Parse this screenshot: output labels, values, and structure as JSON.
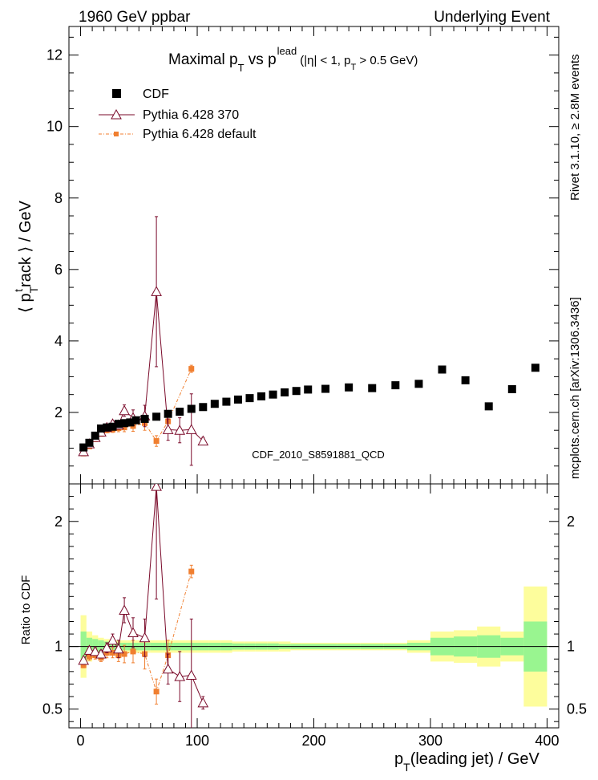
{
  "header": {
    "left": "1960 GeV ppbar",
    "right": "Underlying Event"
  },
  "side": {
    "rivet": "Rivet 3.1.10, ≥ 2.8M events",
    "mcplots": "mcplots.cern.ch [arXiv:1306.3436]"
  },
  "chart_data": [
    {
      "type": "scatter",
      "title": "Maximal p_T vs p_T^lead (|η| < 1, p_T > 0.5 GeV)",
      "title_parts": {
        "main": "Maximal p",
        "sub_T": "T",
        "vs": " vs p",
        "sup_lead": "lead",
        "paren": "(|η| < 1, p",
        "paren2": " > 0.5 GeV)"
      },
      "ylabel": "⟨ p_T^t rack ⟩ / GeV",
      "xlabel": "p_T(leading jet) / GeV",
      "xlim": [
        -10,
        410
      ],
      "ylim": [
        0,
        12.8
      ],
      "yticks": [
        2,
        4,
        6,
        8,
        10,
        12
      ],
      "ytick_labels": [
        "2",
        "4",
        "6",
        "8",
        "10",
        "12"
      ],
      "watermark": "CDF_2010_S8591881_QCD",
      "legend_position": "top-left",
      "legend": [
        {
          "label": "CDF",
          "color": "#000000",
          "marker": "square"
        },
        {
          "label": "Pythia 6.428 370",
          "color": "#7a0a2a",
          "marker": "open-triangle"
        },
        {
          "label": "Pythia 6.428 default",
          "color": "#f07f30",
          "marker": "small-square"
        }
      ],
      "series": [
        {
          "name": "CDF",
          "color": "#000000",
          "x": [
            2.5,
            7.5,
            12.5,
            17.5,
            22.5,
            27.5,
            32.5,
            37.5,
            42.5,
            47.5,
            55,
            65,
            75,
            85,
            95,
            105,
            115,
            125,
            135,
            145,
            155,
            165,
            175,
            185,
            195,
            210,
            230,
            250,
            270,
            290,
            310,
            330,
            350,
            370,
            390
          ],
          "y": [
            1.02,
            1.15,
            1.35,
            1.55,
            1.58,
            1.6,
            1.68,
            1.7,
            1.72,
            1.78,
            1.82,
            1.88,
            1.96,
            2.02,
            2.1,
            2.15,
            2.24,
            2.3,
            2.36,
            2.4,
            2.45,
            2.5,
            2.56,
            2.6,
            2.64,
            2.66,
            2.7,
            2.68,
            2.76,
            2.8,
            3.2,
            2.9,
            2.17,
            2.65,
            3.25
          ]
        },
        {
          "name": "Pythia 6.428 370",
          "color": "#7a0a2a",
          "x": [
            2.5,
            7.5,
            12.5,
            17.5,
            22.5,
            27.5,
            32.5,
            37.5,
            45,
            55,
            65,
            75,
            85,
            95,
            105
          ],
          "y": [
            0.9,
            1.12,
            1.3,
            1.45,
            1.58,
            1.68,
            1.65,
            2.05,
            1.85,
            1.9,
            5.38,
            1.52,
            1.5,
            1.52,
            1.2
          ],
          "yerr": [
            0.03,
            0.03,
            0.04,
            0.05,
            0.06,
            0.08,
            0.12,
            0.16,
            0.22,
            0.3,
            2.1,
            0.3,
            0.35,
            1.0,
            0.1
          ]
        },
        {
          "name": "Pythia 6.428 default",
          "color": "#f07f30",
          "x": [
            2.5,
            7.5,
            12.5,
            17.5,
            22.5,
            27.5,
            32.5,
            37.5,
            45,
            55,
            65,
            75,
            95
          ],
          "y": [
            0.85,
            1.05,
            1.25,
            1.4,
            1.5,
            1.52,
            1.56,
            1.58,
            1.62,
            1.7,
            1.2,
            1.75,
            3.22
          ],
          "yerr": [
            0.03,
            0.04,
            0.05,
            0.06,
            0.07,
            0.08,
            0.1,
            0.12,
            0.15,
            0.2,
            0.15,
            0.2,
            0.1
          ]
        }
      ]
    },
    {
      "type": "scatter",
      "ylabel": "Ratio to CDF",
      "xlabel": "p_T(leading jet) / GeV",
      "xlim": [
        -10,
        410
      ],
      "ylim": [
        0.35,
        2.3
      ],
      "yticks": [
        0.5,
        1,
        2
      ],
      "ytick_labels": [
        "0.5",
        "1",
        "2"
      ],
      "xticks": [
        0,
        100,
        200,
        300,
        400
      ],
      "xtick_labels": [
        "0",
        "100",
        "200",
        "300",
        "400"
      ],
      "bands": {
        "edges": [
          0,
          5,
          10,
          15,
          20,
          25,
          30,
          35,
          40,
          45,
          50,
          60,
          70,
          80,
          90,
          100,
          110,
          120,
          130,
          140,
          150,
          160,
          170,
          180,
          190,
          200,
          220,
          240,
          260,
          280,
          300,
          320,
          340,
          360,
          380,
          400
        ],
        "green_halfwidth": [
          0.12,
          0.07,
          0.06,
          0.05,
          0.04,
          0.04,
          0.03,
          0.03,
          0.03,
          0.03,
          0.03,
          0.03,
          0.03,
          0.03,
          0.03,
          0.03,
          0.03,
          0.03,
          0.025,
          0.025,
          0.025,
          0.025,
          0.02,
          0.02,
          0.02,
          0.02,
          0.02,
          0.02,
          0.02,
          0.03,
          0.07,
          0.08,
          0.09,
          0.07,
          0.2
        ],
        "yellow_halfwidth": [
          0.25,
          0.12,
          0.09,
          0.07,
          0.06,
          0.05,
          0.05,
          0.05,
          0.05,
          0.05,
          0.05,
          0.05,
          0.05,
          0.05,
          0.05,
          0.05,
          0.05,
          0.05,
          0.04,
          0.04,
          0.04,
          0.04,
          0.04,
          0.03,
          0.03,
          0.03,
          0.03,
          0.03,
          0.03,
          0.05,
          0.12,
          0.13,
          0.16,
          0.12,
          0.48
        ],
        "green_color": "#99f590",
        "yellow_color": "#fdfd9c"
      },
      "series": [
        {
          "name": "Pythia 6.428 370",
          "color": "#7a0a2a",
          "x": [
            2.5,
            7.5,
            12.5,
            17.5,
            22.5,
            27.5,
            32.5,
            37.5,
            45,
            55,
            65,
            75,
            85,
            95,
            105
          ],
          "y": [
            0.89,
            0.97,
            0.96,
            0.94,
            0.99,
            1.05,
            0.98,
            1.29,
            1.11,
            1.07,
            2.28,
            0.82,
            0.76,
            0.77,
            0.55
          ],
          "yerr": [
            0.02,
            0.03,
            0.03,
            0.03,
            0.04,
            0.05,
            0.07,
            0.1,
            0.12,
            0.15,
            0.9,
            0.12,
            0.2,
            0.45,
            0.05
          ]
        },
        {
          "name": "Pythia 6.428 default",
          "color": "#f07f30",
          "x": [
            2.5,
            7.5,
            12.5,
            17.5,
            22.5,
            27.5,
            32.5,
            37.5,
            45,
            55,
            65,
            75,
            95
          ],
          "y": [
            0.85,
            0.92,
            0.93,
            0.91,
            0.95,
            0.95,
            0.93,
            0.94,
            0.96,
            0.94,
            0.64,
            0.93,
            1.6
          ],
          "yerr": [
            0.02,
            0.03,
            0.03,
            0.03,
            0.04,
            0.04,
            0.05,
            0.07,
            0.09,
            0.12,
            0.1,
            0.12,
            0.05
          ]
        }
      ]
    }
  ]
}
